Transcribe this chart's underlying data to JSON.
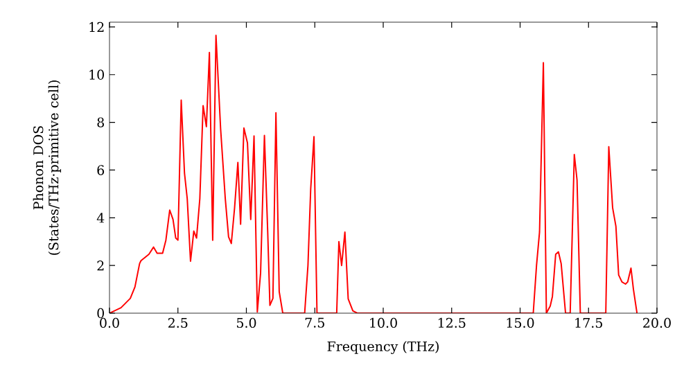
{
  "chart_data": {
    "type": "line",
    "xlabel": "Frequency (THz)",
    "ylabel": "Phonon DOS (States/THz·primitive cell)",
    "xlim": [
      0,
      20
    ],
    "ylim": [
      0,
      12.2
    ],
    "xticks": [
      {
        "value": 0,
        "label": "0.0"
      },
      {
        "value": 2.5,
        "label": "2.5"
      },
      {
        "value": 5,
        "label": "5.0"
      },
      {
        "value": 7.5,
        "label": "7.5"
      },
      {
        "value": 10,
        "label": "10.0"
      },
      {
        "value": 12.5,
        "label": "12.5"
      },
      {
        "value": 15,
        "label": "15.0"
      },
      {
        "value": 17.5,
        "label": "17.5"
      },
      {
        "value": 20,
        "label": "20.0"
      }
    ],
    "yticks": [
      0,
      2,
      4,
      6,
      8,
      10,
      12
    ],
    "grid": false,
    "marker": "none",
    "line_style": "solid",
    "series": [
      {
        "color": "#ff0000",
        "x": [
          0,
          0.42,
          0.76,
          0.93,
          1.1,
          1.15,
          1.44,
          1.61,
          1.74,
          1.94,
          2.06,
          2.2,
          2.32,
          2.42,
          2.5,
          2.62,
          2.74,
          2.84,
          2.96,
          3.08,
          3.18,
          3.3,
          3.42,
          3.54,
          3.65,
          3.77,
          3.89,
          4.06,
          4.23,
          4.35,
          4.45,
          4.57,
          4.69,
          4.79,
          4.91,
          5.04,
          5.16,
          5.28,
          5.4,
          5.52,
          5.66,
          5.78,
          5.86,
          5.97,
          6.08,
          6.2,
          6.33,
          7.13,
          7.25,
          7.35,
          7.47,
          7.58,
          8.3,
          8.38,
          8.48,
          8.6,
          8.72,
          8.89,
          9.05,
          15.48,
          15.6,
          15.71,
          15.85,
          15.96,
          16.1,
          16.18,
          16.3,
          16.4,
          16.5,
          16.66,
          16.83,
          16.98,
          17.08,
          17.2,
          18.13,
          18.24,
          18.38,
          18.5,
          18.6,
          18.72,
          18.85,
          18.93,
          19.05,
          19.14,
          19.27
        ],
        "values": [
          0,
          0.23,
          0.62,
          1.1,
          2.08,
          2.2,
          2.47,
          2.77,
          2.51,
          2.51,
          3.06,
          4.32,
          3.93,
          3.15,
          3.06,
          8.93,
          5.87,
          4.8,
          2.18,
          3.44,
          3.15,
          4.8,
          8.7,
          7.82,
          10.93,
          3.06,
          11.65,
          7.72,
          4.8,
          3.2,
          2.92,
          4.42,
          6.32,
          3.73,
          7.76,
          7.14,
          3.93,
          7.43,
          0.05,
          1.69,
          7.45,
          3.4,
          0.33,
          0.62,
          8.4,
          0.9,
          0,
          0,
          2.0,
          5.2,
          7.4,
          0,
          0,
          3.0,
          2.0,
          3.4,
          0.6,
          0.1,
          0,
          0,
          2.0,
          3.4,
          10.5,
          0,
          0.3,
          0.7,
          2.47,
          2.57,
          2.08,
          0,
          0,
          6.65,
          5.58,
          0,
          0,
          6.98,
          4.42,
          3.64,
          1.6,
          1.31,
          1.22,
          1.31,
          1.89,
          1.0,
          0
        ]
      }
    ]
  }
}
